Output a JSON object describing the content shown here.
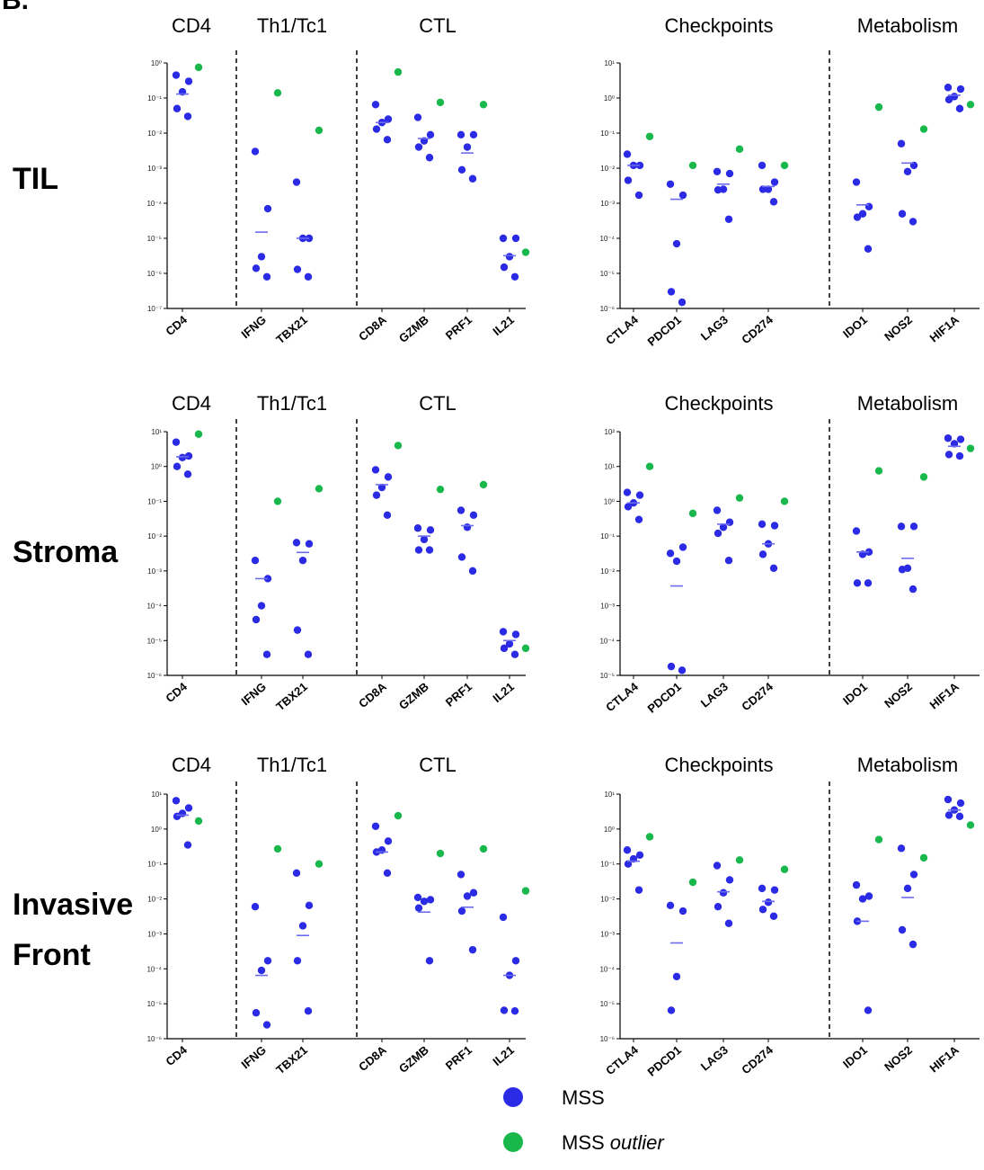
{
  "panel_letter": "B.",
  "colors": {
    "mss": "#2b2be6",
    "outlier": "#19b84c",
    "median": "#6b6bf0"
  },
  "legend": [
    {
      "label": "MSS",
      "label_italic": "",
      "color": "#2b2be6"
    },
    {
      "label": "MSS",
      "label_italic": "outlier",
      "color": "#19b84c"
    }
  ],
  "rows": [
    {
      "label_lines": [
        "TIL"
      ]
    },
    {
      "label_lines": [
        "Stroma"
      ]
    },
    {
      "label_lines": [
        "Invasive",
        "Front"
      ]
    }
  ],
  "chart_data": [
    {
      "type": "scatter",
      "row": "TIL",
      "scale": "log",
      "ylim_exp": [
        -7,
        0
      ],
      "y_tick_labels": [
        "10⁰",
        "10⁻¹",
        "10⁻²",
        "10⁻³",
        "10⁻⁴",
        "10⁻⁵",
        "10⁻⁶",
        "10⁻⁷"
      ],
      "groups": [
        {
          "name": "CD4",
          "categories": [
            "CD4"
          ]
        },
        {
          "name": "Th1/Tc1",
          "categories": [
            "IFNG",
            "TBX21"
          ]
        },
        {
          "name": "CTL",
          "categories": [
            "CD8A",
            "GZMB",
            "PRF1",
            "IL21"
          ]
        }
      ],
      "series": [
        {
          "name": "MSS",
          "values": {
            "CD4": [
              0.45,
              0.3,
              0.15,
              0.05,
              0.03
            ],
            "IFNG": [
              0.003,
              7e-05,
              3e-06,
              1.4e-06,
              8e-07
            ],
            "TBX21": [
              0.0004,
              1e-05,
              1e-05,
              1.3e-06,
              8e-07
            ],
            "CD8A": [
              0.065,
              0.025,
              0.02,
              0.013,
              0.0065
            ],
            "GZMB": [
              0.028,
              0.009,
              0.006,
              0.004,
              0.002
            ],
            "PRF1": [
              0.009,
              0.009,
              0.004,
              0.0009,
              0.0005
            ],
            "IL21": [
              1e-05,
              1e-05,
              3e-06,
              1.5e-06,
              8e-07
            ]
          },
          "medians": {
            "CD4": 0.13,
            "IFNG": 1.5e-05,
            "TBX21": 1e-05,
            "CD8A": 0.02,
            "GZMB": 0.007,
            "PRF1": 0.0027,
            "IL21": 3.2e-06
          }
        },
        {
          "name": "MSS outlier",
          "values": {
            "CD4": [
              0.75
            ],
            "IFNG": [
              0.14
            ],
            "TBX21": [
              0.012
            ],
            "CD8A": [
              0.55
            ],
            "GZMB": [
              0.075
            ],
            "PRF1": [
              0.065
            ],
            "IL21": [
              4e-06
            ]
          }
        }
      ]
    },
    {
      "type": "scatter",
      "row": "TIL",
      "scale": "log",
      "ylim_exp": [
        -6,
        1
      ],
      "y_tick_labels": [
        "10¹",
        "10⁰",
        "10⁻¹",
        "10⁻²",
        "10⁻³",
        "10⁻⁴",
        "10⁻⁵",
        "10⁻⁶"
      ],
      "groups": [
        {
          "name": "Checkpoints",
          "categories": [
            "CTLA4",
            "PDCD1",
            "LAG3",
            "CD274"
          ]
        },
        {
          "name": "Metabolism",
          "categories": [
            "IDO1",
            "NOS2",
            "HIF1A"
          ]
        }
      ],
      "series": [
        {
          "name": "MSS",
          "values": {
            "CTLA4": [
              0.025,
              0.012,
              0.012,
              0.0045,
              0.0017
            ],
            "PDCD1": [
              0.0035,
              0.0017,
              7e-05,
              3e-06,
              1.5e-06
            ],
            "LAG3": [
              0.008,
              0.007,
              0.0025,
              0.0024,
              0.00035
            ],
            "CD274": [
              0.012,
              0.004,
              0.0025,
              0.0025,
              0.0011
            ],
            "IDO1": [
              0.004,
              0.0008,
              0.0005,
              0.0004,
              5e-05
            ],
            "NOS2": [
              0.05,
              0.012,
              0.008,
              0.0005,
              0.0003
            ],
            "HIF1A": [
              2.0,
              1.8,
              1.1,
              0.9,
              0.5
            ]
          },
          "medians": {
            "CTLA4": 0.012,
            "PDCD1": 0.0013,
            "LAG3": 0.0035,
            "CD274": 0.003,
            "IDO1": 0.0009,
            "NOS2": 0.014,
            "HIF1A": 1.2
          }
        },
        {
          "name": "MSS outlier",
          "values": {
            "CTLA4": [
              0.08
            ],
            "PDCD1": [
              0.012
            ],
            "LAG3": [
              0.035
            ],
            "CD274": [
              0.012
            ],
            "IDO1": [
              0.55
            ],
            "NOS2": [
              0.13
            ],
            "HIF1A": [
              0.65
            ]
          }
        }
      ]
    },
    {
      "type": "scatter",
      "row": "Stroma",
      "scale": "log",
      "ylim_exp": [
        -6,
        1
      ],
      "y_tick_labels": [
        "10¹",
        "10⁰",
        "10⁻¹",
        "10⁻²",
        "10⁻³",
        "10⁻⁴",
        "10⁻⁵",
        "10⁻⁶"
      ],
      "groups": [
        {
          "name": "CD4",
          "categories": [
            "CD4"
          ]
        },
        {
          "name": "Th1/Tc1",
          "categories": [
            "IFNG",
            "TBX21"
          ]
        },
        {
          "name": "CTL",
          "categories": [
            "CD8A",
            "GZMB",
            "PRF1",
            "IL21"
          ]
        }
      ],
      "series": [
        {
          "name": "MSS",
          "values": {
            "CD4": [
              5.0,
              2.0,
              1.8,
              1.0,
              0.6
            ],
            "IFNG": [
              0.002,
              0.0006,
              0.0001,
              4e-05,
              4e-06
            ],
            "TBX21": [
              0.0065,
              0.006,
              0.002,
              2e-05,
              4e-06
            ],
            "CD8A": [
              0.8,
              0.5,
              0.25,
              0.15,
              0.04
            ],
            "GZMB": [
              0.017,
              0.015,
              0.008,
              0.004,
              0.004
            ],
            "PRF1": [
              0.055,
              0.04,
              0.018,
              0.0025,
              0.001
            ],
            "IL21": [
              1.8e-05,
              1.5e-05,
              8e-06,
              6e-06,
              4e-06
            ]
          },
          "medians": {
            "CD4": 1.9,
            "IFNG": 0.0006,
            "TBX21": 0.0034,
            "CD8A": 0.3,
            "GZMB": 0.01,
            "PRF1": 0.02,
            "IL21": 1e-05
          }
        },
        {
          "name": "MSS outlier",
          "values": {
            "CD4": [
              8.5
            ],
            "IFNG": [
              0.1
            ],
            "TBX21": [
              0.23
            ],
            "CD8A": [
              4.0
            ],
            "GZMB": [
              0.22
            ],
            "PRF1": [
              0.3
            ],
            "IL21": [
              6e-06
            ]
          }
        }
      ]
    },
    {
      "type": "scatter",
      "row": "Stroma",
      "scale": "log",
      "ylim_exp": [
        -5,
        2
      ],
      "y_tick_labels": [
        "10²",
        "10¹",
        "10⁰",
        "10⁻¹",
        "10⁻²",
        "10⁻³",
        "10⁻⁴",
        "10⁻⁵"
      ],
      "groups": [
        {
          "name": "Checkpoints",
          "categories": [
            "CTLA4",
            "PDCD1",
            "LAG3",
            "CD274"
          ]
        },
        {
          "name": "Metabolism",
          "categories": [
            "IDO1",
            "NOS2",
            "HIF1A"
          ]
        }
      ],
      "series": [
        {
          "name": "MSS",
          "values": {
            "CTLA4": [
              1.8,
              1.5,
              0.9,
              0.7,
              0.3
            ],
            "PDCD1": [
              0.032,
              0.048,
              0.019,
              1.8e-05,
              1.4e-05
            ],
            "LAG3": [
              0.55,
              0.25,
              0.18,
              0.12,
              0.02
            ],
            "CD274": [
              0.22,
              0.2,
              0.06,
              0.03,
              0.012
            ],
            "IDO1": [
              0.14,
              0.035,
              0.03,
              0.0045,
              0.0045
            ],
            "NOS2": [
              0.19,
              0.19,
              0.012,
              0.011,
              0.003
            ],
            "HIF1A": [
              65,
              60,
              45,
              22,
              20
            ]
          },
          "medians": {
            "CTLA4": 0.9,
            "PDCD1": 0.0037,
            "LAG3": 0.22,
            "CD274": 0.06,
            "IDO1": 0.035,
            "NOS2": 0.023,
            "HIF1A": 38
          }
        },
        {
          "name": "MSS outlier",
          "values": {
            "CTLA4": [
              10
            ],
            "PDCD1": [
              0.45
            ],
            "LAG3": [
              1.25
            ],
            "CD274": [
              1.0
            ],
            "IDO1": [
              7.5
            ],
            "NOS2": [
              5.0
            ],
            "HIF1A": [
              33
            ]
          }
        }
      ]
    },
    {
      "type": "scatter",
      "row": "Invasive Front",
      "scale": "log",
      "ylim_exp": [
        -6,
        1
      ],
      "y_tick_labels": [
        "10¹",
        "10⁰",
        "10⁻¹",
        "10⁻²",
        "10⁻³",
        "10⁻⁴",
        "10⁻⁵",
        "10⁻⁶"
      ],
      "groups": [
        {
          "name": "CD4",
          "categories": [
            "CD4"
          ]
        },
        {
          "name": "Th1/Tc1",
          "categories": [
            "IFNG",
            "TBX21"
          ]
        },
        {
          "name": "CTL",
          "categories": [
            "CD8A",
            "GZMB",
            "PRF1",
            "IL21"
          ]
        }
      ],
      "series": [
        {
          "name": "MSS",
          "values": {
            "CD4": [
              6.5,
              4.0,
              2.8,
              2.3,
              0.35
            ],
            "IFNG": [
              0.006,
              0.00017,
              9e-05,
              5.5e-06,
              2.5e-06
            ],
            "TBX21": [
              0.055,
              0.0065,
              0.0017,
              0.00017,
              6.2e-06
            ],
            "CD8A": [
              1.2,
              0.45,
              0.25,
              0.22,
              0.055
            ],
            "GZMB": [
              0.011,
              0.0095,
              0.0085,
              0.0055,
              0.00017
            ],
            "PRF1": [
              0.05,
              0.015,
              0.012,
              0.0045,
              0.00035
            ],
            "IL21": [
              0.003,
              0.00017,
              6.5e-05,
              6.5e-06,
              6.2e-06
            ]
          },
          "medians": {
            "CD4": 2.5,
            "IFNG": 6.5e-05,
            "TBX21": 0.0009,
            "CD8A": 0.22,
            "GZMB": 0.0042,
            "PRF1": 0.0058,
            "IL21": 6.5e-05
          }
        },
        {
          "name": "MSS outlier",
          "values": {
            "CD4": [
              1.7
            ],
            "IFNG": [
              0.27
            ],
            "TBX21": [
              0.1
            ],
            "CD8A": [
              2.4
            ],
            "GZMB": [
              0.2
            ],
            "PRF1": [
              0.27
            ],
            "IL21": [
              0.017
            ]
          }
        }
      ]
    },
    {
      "type": "scatter",
      "row": "Invasive Front",
      "scale": "log",
      "ylim_exp": [
        -6,
        1
      ],
      "y_tick_labels": [
        "10¹",
        "10⁰",
        "10⁻¹",
        "10⁻²",
        "10⁻³",
        "10⁻⁴",
        "10⁻⁵",
        "10⁻⁶"
      ],
      "groups": [
        {
          "name": "Checkpoints",
          "categories": [
            "CTLA4",
            "PDCD1",
            "LAG3",
            "CD274"
          ]
        },
        {
          "name": "Metabolism",
          "categories": [
            "IDO1",
            "NOS2",
            "HIF1A"
          ]
        }
      ],
      "series": [
        {
          "name": "MSS",
          "values": {
            "CTLA4": [
              0.25,
              0.18,
              0.14,
              0.1,
              0.018
            ],
            "PDCD1": [
              0.0065,
              0.0045,
              6e-05,
              6.5e-06
            ],
            "LAG3": [
              0.09,
              0.035,
              0.015,
              0.006,
              0.002
            ],
            "CD274": [
              0.02,
              0.018,
              0.008,
              0.005,
              0.0032
            ],
            "IDO1": [
              0.025,
              0.012,
              0.01,
              0.0023,
              6.5e-06
            ],
            "NOS2": [
              0.28,
              0.05,
              0.02,
              0.0013,
              0.0005
            ],
            "HIF1A": [
              7.0,
              5.5,
              3.5,
              2.5,
              2.3
            ]
          },
          "medians": {
            "CTLA4": 0.12,
            "PDCD1": 0.00055,
            "LAG3": 0.016,
            "CD274": 0.0085,
            "IDO1": 0.0023,
            "NOS2": 0.011,
            "HIF1A": 3.5
          }
        },
        {
          "name": "MSS outlier",
          "values": {
            "CTLA4": [
              0.6
            ],
            "PDCD1": [
              0.03
            ],
            "LAG3": [
              0.13
            ],
            "CD274": [
              0.07
            ],
            "IDO1": [
              0.5
            ],
            "NOS2": [
              0.15
            ],
            "HIF1A": [
              1.3
            ]
          }
        }
      ]
    }
  ]
}
